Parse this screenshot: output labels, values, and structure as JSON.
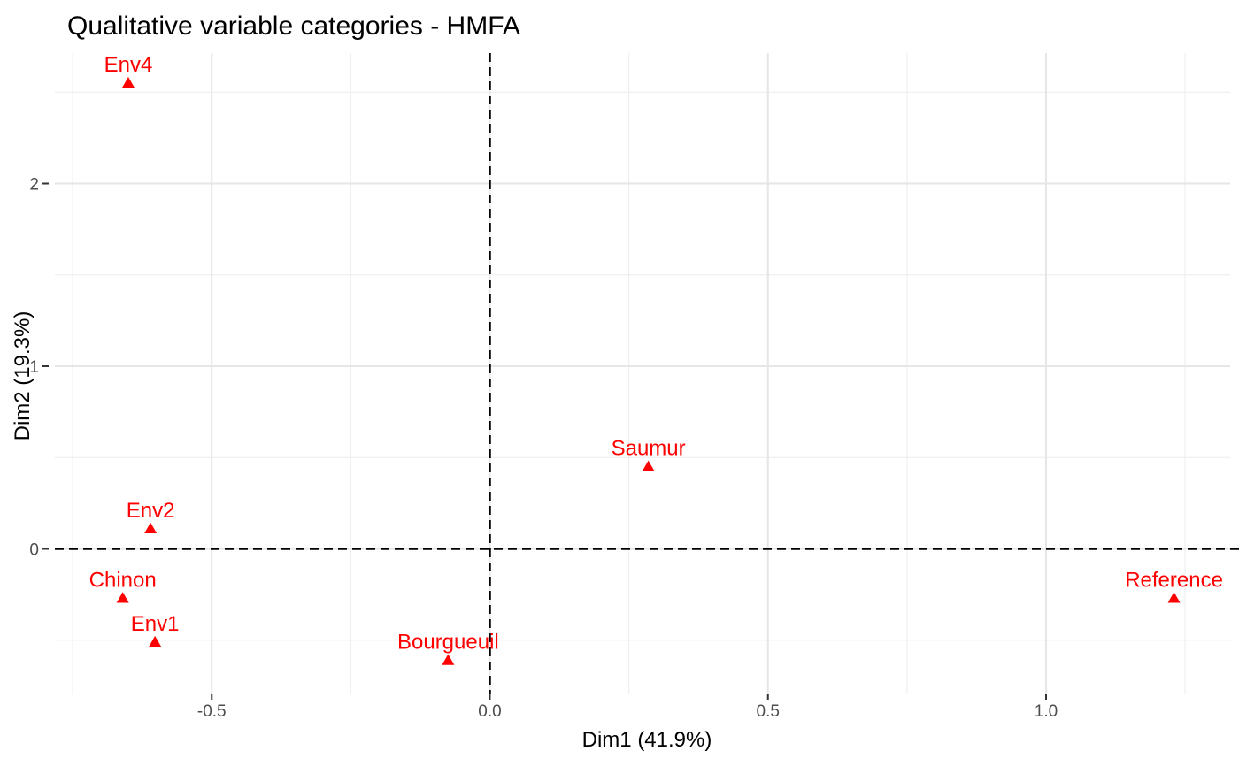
{
  "chart_data": {
    "type": "scatter",
    "title": "Qualitative variable categories - HMFA",
    "xlabel": "Dim1 (41.9%)",
    "ylabel": "Dim2 (19.3%)",
    "xlim": [
      -0.75,
      1.3
    ],
    "ylim": [
      -0.8,
      2.7
    ],
    "x_ticks": [
      -0.5,
      0.0,
      0.5,
      1.0
    ],
    "x_tick_labels": [
      "-0.5",
      "0.0",
      "0.5",
      "1.0"
    ],
    "y_ticks": [
      0,
      1,
      2
    ],
    "y_tick_labels": [
      "0",
      "1",
      "2"
    ],
    "grid": true,
    "reference_lines": {
      "x": 0,
      "y": 0,
      "style": "dashed"
    },
    "marker": "triangle",
    "color": "#ff0000",
    "points": [
      {
        "label": "Env4",
        "x": -0.65,
        "y": 2.55
      },
      {
        "label": "Saumur",
        "x": 0.285,
        "y": 0.45
      },
      {
        "label": "Env2",
        "x": -0.61,
        "y": 0.11
      },
      {
        "label": "Chinon",
        "x": -0.66,
        "y": -0.27
      },
      {
        "label": "Reference",
        "x": 1.23,
        "y": -0.27
      },
      {
        "label": "Env1",
        "x": -0.602,
        "y": -0.51
      },
      {
        "label": "Bourgueuil",
        "x": -0.075,
        "y": -0.61
      }
    ]
  }
}
